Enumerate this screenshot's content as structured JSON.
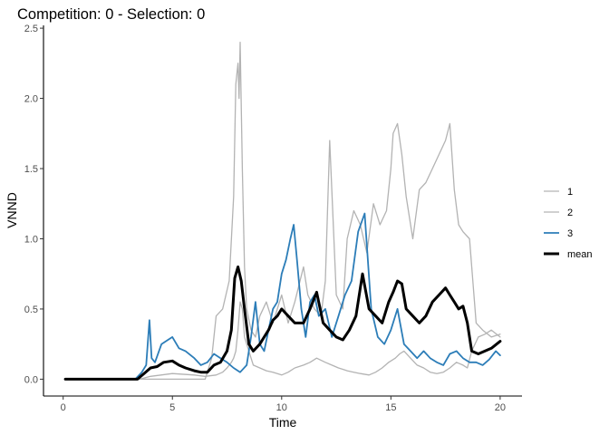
{
  "chart_data": {
    "type": "line",
    "title": "Competition: 0 - Selection: 0",
    "xlabel": "Time",
    "ylabel": "VNND",
    "xlim": [
      -0.9,
      21.0
    ],
    "ylim": [
      -0.12,
      2.52
    ],
    "x_ticks": [
      0,
      5,
      10,
      15,
      20
    ],
    "y_ticks": [
      0.0,
      0.5,
      1.0,
      1.5,
      2.0,
      2.5
    ],
    "x_tick_labels": [
      "0",
      "5",
      "10",
      "15",
      "20"
    ],
    "y_tick_labels": [
      "0.0",
      "0.5",
      "1.0",
      "1.5",
      "2.0",
      "2.5"
    ],
    "grid": false,
    "legend_position": "right",
    "series": [
      {
        "name": "1",
        "color": "#b3b3b3",
        "line_width": 1.3,
        "x": [
          0.1,
          3.5,
          4.0,
          5.0,
          6.0,
          6.5,
          7.0,
          7.3,
          7.5,
          7.7,
          7.8,
          7.9,
          8.0,
          8.1,
          8.2,
          8.3,
          8.5,
          8.7,
          9.0,
          9.3,
          9.6,
          10.0,
          10.3,
          10.6,
          11.0,
          11.3,
          11.6,
          12.0,
          12.3,
          12.6,
          13.0,
          13.3,
          13.6,
          14.0,
          14.3,
          14.6,
          14.9,
          15.2,
          15.4,
          15.6,
          15.9,
          16.2,
          16.5,
          16.8,
          17.1,
          17.4,
          17.7,
          18.0,
          18.3,
          18.5,
          18.7,
          19.0,
          19.3,
          19.6,
          20.0
        ],
        "y": [
          0.0,
          0.0,
          0.02,
          0.04,
          0.03,
          0.02,
          0.03,
          0.05,
          0.08,
          0.12,
          0.15,
          0.2,
          0.35,
          0.55,
          0.5,
          0.3,
          0.2,
          0.1,
          0.08,
          0.06,
          0.05,
          0.03,
          0.05,
          0.08,
          0.1,
          0.12,
          0.15,
          0.12,
          0.1,
          0.08,
          0.06,
          0.05,
          0.04,
          0.03,
          0.05,
          0.08,
          0.12,
          0.15,
          0.18,
          0.2,
          0.15,
          0.1,
          0.08,
          0.05,
          0.04,
          0.05,
          0.08,
          0.12,
          0.1,
          0.08,
          0.2,
          0.3,
          0.32,
          0.35,
          0.3
        ]
      },
      {
        "name": "2",
        "color": "#b3b3b3",
        "line_width": 1.3,
        "x": [
          0.1,
          6.5,
          6.8,
          7.0,
          7.3,
          7.6,
          7.8,
          7.9,
          8.0,
          8.05,
          8.1,
          8.2,
          8.3,
          8.4,
          8.6,
          8.8,
          9.0,
          9.3,
          9.6,
          10.0,
          10.3,
          10.6,
          11.0,
          11.2,
          11.5,
          11.8,
          12.0,
          12.2,
          12.5,
          12.8,
          13.0,
          13.3,
          13.6,
          13.9,
          14.2,
          14.5,
          14.8,
          15.0,
          15.1,
          15.3,
          15.5,
          15.7,
          16.0,
          16.3,
          16.6,
          16.9,
          17.2,
          17.5,
          17.7,
          17.9,
          18.1,
          18.3,
          18.6,
          18.9,
          19.2,
          19.6,
          20.0
        ],
        "y": [
          0.0,
          0.0,
          0.15,
          0.45,
          0.5,
          0.7,
          1.3,
          2.1,
          2.25,
          2.0,
          2.4,
          1.5,
          0.8,
          0.5,
          0.35,
          0.3,
          0.45,
          0.55,
          0.4,
          0.6,
          0.4,
          0.55,
          0.8,
          0.6,
          0.5,
          0.45,
          0.7,
          1.7,
          0.6,
          0.5,
          1.0,
          1.2,
          1.1,
          0.9,
          1.25,
          1.1,
          1.2,
          1.5,
          1.75,
          1.82,
          1.6,
          1.3,
          1.0,
          1.35,
          1.4,
          1.5,
          1.6,
          1.7,
          1.82,
          1.35,
          1.1,
          1.05,
          1.0,
          0.4,
          0.35,
          0.3,
          0.32
        ]
      },
      {
        "name": "3",
        "color": "#2c7db8",
        "line_width": 1.8,
        "x": [
          0.1,
          3.3,
          3.6,
          3.8,
          3.95,
          4.05,
          4.2,
          4.5,
          4.8,
          5.0,
          5.3,
          5.6,
          6.0,
          6.3,
          6.6,
          6.9,
          7.2,
          7.5,
          7.8,
          8.1,
          8.4,
          8.6,
          8.8,
          9.0,
          9.2,
          9.4,
          9.6,
          9.8,
          10.0,
          10.2,
          10.4,
          10.55,
          10.7,
          10.9,
          11.1,
          11.3,
          11.5,
          11.7,
          12.0,
          12.3,
          12.6,
          12.9,
          13.2,
          13.5,
          13.8,
          14.1,
          14.4,
          14.7,
          15.0,
          15.3,
          15.6,
          15.9,
          16.2,
          16.5,
          16.8,
          17.1,
          17.4,
          17.7,
          18.0,
          18.3,
          18.6,
          18.9,
          19.2,
          19.5,
          19.8,
          20.0
        ],
        "y": [
          0.0,
          0.0,
          0.05,
          0.1,
          0.42,
          0.15,
          0.12,
          0.25,
          0.28,
          0.3,
          0.22,
          0.2,
          0.15,
          0.1,
          0.12,
          0.18,
          0.15,
          0.12,
          0.08,
          0.05,
          0.1,
          0.3,
          0.55,
          0.25,
          0.2,
          0.35,
          0.5,
          0.55,
          0.75,
          0.85,
          1.0,
          1.1,
          0.85,
          0.5,
          0.3,
          0.55,
          0.6,
          0.45,
          0.5,
          0.3,
          0.45,
          0.6,
          0.7,
          1.05,
          1.18,
          0.5,
          0.3,
          0.25,
          0.35,
          0.5,
          0.25,
          0.2,
          0.15,
          0.2,
          0.15,
          0.12,
          0.1,
          0.18,
          0.2,
          0.15,
          0.12,
          0.12,
          0.1,
          0.14,
          0.2,
          0.17
        ]
      },
      {
        "name": "mean",
        "color": "#000000",
        "line_width": 3.0,
        "x": [
          0.1,
          3.4,
          3.7,
          4.0,
          4.3,
          4.6,
          5.0,
          5.3,
          5.6,
          6.0,
          6.3,
          6.6,
          6.9,
          7.2,
          7.5,
          7.7,
          7.85,
          8.0,
          8.15,
          8.3,
          8.5,
          8.7,
          9.0,
          9.2,
          9.4,
          9.6,
          9.8,
          10.0,
          10.3,
          10.6,
          11.0,
          11.3,
          11.6,
          11.9,
          12.2,
          12.5,
          12.8,
          13.1,
          13.4,
          13.7,
          14.0,
          14.3,
          14.6,
          14.9,
          15.1,
          15.3,
          15.5,
          15.7,
          16.0,
          16.3,
          16.6,
          16.9,
          17.2,
          17.5,
          17.7,
          17.9,
          18.1,
          18.3,
          18.5,
          18.7,
          19.0,
          19.3,
          19.6,
          20.0
        ],
        "y": [
          0.0,
          0.0,
          0.04,
          0.08,
          0.09,
          0.12,
          0.13,
          0.1,
          0.08,
          0.06,
          0.05,
          0.05,
          0.1,
          0.12,
          0.2,
          0.35,
          0.72,
          0.8,
          0.7,
          0.5,
          0.25,
          0.2,
          0.25,
          0.3,
          0.35,
          0.42,
          0.45,
          0.5,
          0.45,
          0.4,
          0.4,
          0.5,
          0.62,
          0.4,
          0.35,
          0.3,
          0.28,
          0.35,
          0.45,
          0.75,
          0.5,
          0.45,
          0.4,
          0.55,
          0.62,
          0.7,
          0.68,
          0.5,
          0.45,
          0.4,
          0.45,
          0.55,
          0.6,
          0.65,
          0.6,
          0.55,
          0.5,
          0.52,
          0.4,
          0.2,
          0.18,
          0.2,
          0.22,
          0.27
        ]
      }
    ]
  }
}
